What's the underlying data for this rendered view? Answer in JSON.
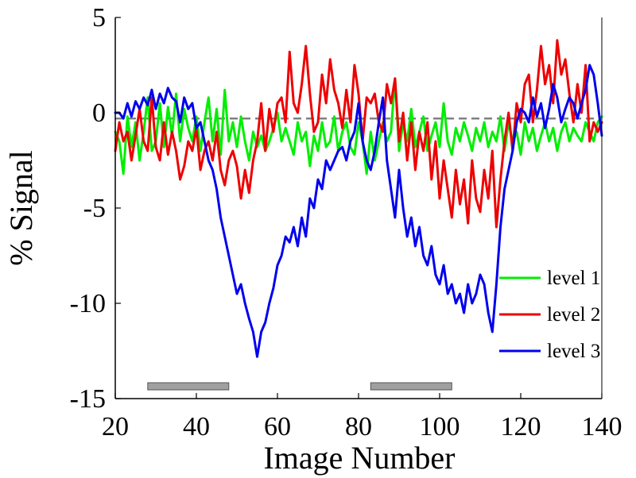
{
  "chart_data": {
    "type": "line",
    "title": "",
    "xlabel": "Image Number",
    "ylabel": "% Signal",
    "xlim": [
      20,
      140
    ],
    "ylim": [
      -15,
      5
    ],
    "xticks": [
      20,
      40,
      60,
      80,
      100,
      120,
      140
    ],
    "yticks": [
      -15,
      -10,
      -5,
      0,
      5
    ],
    "grid": false,
    "legend_position": "bottom-right",
    "reference_line": {
      "y": -0.3,
      "color": "#808080",
      "style": "dashed"
    },
    "stimulus_blocks": [
      {
        "start": 28,
        "end": 48,
        "color": "#a0a0a0"
      },
      {
        "start": 83,
        "end": 103,
        "color": "#a0a0a0"
      }
    ],
    "series": [
      {
        "name": "level 1",
        "color": "#00ee00",
        "x": [
          20,
          21,
          22,
          23,
          24,
          25,
          26,
          27,
          28,
          29,
          30,
          31,
          32,
          33,
          34,
          35,
          36,
          37,
          38,
          39,
          40,
          41,
          42,
          43,
          44,
          45,
          46,
          47,
          48,
          49,
          50,
          51,
          52,
          53,
          54,
          55,
          56,
          57,
          58,
          59,
          60,
          61,
          62,
          63,
          64,
          65,
          66,
          67,
          68,
          69,
          70,
          71,
          72,
          73,
          74,
          75,
          76,
          77,
          78,
          79,
          80,
          81,
          82,
          83,
          84,
          85,
          86,
          87,
          88,
          89,
          90,
          91,
          92,
          93,
          94,
          95,
          96,
          97,
          98,
          99,
          100,
          101,
          102,
          103,
          104,
          105,
          106,
          107,
          108,
          109,
          110,
          111,
          112,
          113,
          114,
          115,
          116,
          117,
          118,
          119,
          120,
          121,
          122,
          123,
          124,
          125,
          126,
          127,
          128,
          129,
          130,
          131,
          132,
          133,
          134,
          135,
          136,
          137,
          138,
          139,
          140
        ],
        "y": [
          -1.0,
          -1.5,
          -3.2,
          -0.2,
          -1.8,
          -0.5,
          -2.5,
          -1.0,
          0.8,
          -2.0,
          -1.5,
          0.5,
          -1.8,
          0.3,
          -1.2,
          1.0,
          -1.5,
          0.2,
          -0.8,
          -1.5,
          -0.2,
          -2.0,
          -0.5,
          0.8,
          -1.5,
          0.2,
          -2.2,
          1.2,
          -1.5,
          -0.5,
          -1.8,
          -0.2,
          -1.5,
          -2.5,
          -1.0,
          -1.8,
          -1.2,
          -2.0,
          -1.5,
          -0.8,
          0.0,
          -1.5,
          -0.8,
          -1.5,
          -2.2,
          -0.5,
          -1.5,
          -1.0,
          -2.8,
          -1.2,
          -2.0,
          -0.5,
          -1.8,
          -1.5,
          -0.2,
          -2.0,
          -1.0,
          -0.5,
          -1.8,
          -2.2,
          -0.5,
          -1.5,
          -3.2,
          -1.0,
          -2.5,
          -1.5,
          -0.5,
          -1.5,
          -1.0,
          1.8,
          -2.0,
          -0.5,
          -1.5,
          0.2,
          -1.8,
          -1.0,
          -0.2,
          -2.0,
          -1.2,
          -0.5,
          -1.8,
          0.5,
          -1.5,
          -2.2,
          -0.8,
          -1.5,
          -0.5,
          -1.2,
          -2.0,
          -0.8,
          -1.5,
          -0.5,
          -1.8,
          -1.0,
          -1.5,
          -0.2,
          -2.0,
          -0.5,
          -1.5,
          -1.0,
          -2.2,
          -0.5,
          -1.5,
          -0.8,
          -2.0,
          -1.2,
          -0.5,
          -1.5,
          -0.8,
          -2.0,
          -1.0,
          -0.5,
          -1.5,
          -0.8,
          -1.2,
          -1.5,
          -0.5,
          -1.0,
          -1.5,
          -0.5,
          -0.2
        ]
      },
      {
        "name": "level 2",
        "color": "#ee0000",
        "x": [
          20,
          21,
          22,
          23,
          24,
          25,
          26,
          27,
          28,
          29,
          30,
          31,
          32,
          33,
          34,
          35,
          36,
          37,
          38,
          39,
          40,
          41,
          42,
          43,
          44,
          45,
          46,
          47,
          48,
          49,
          50,
          51,
          52,
          53,
          54,
          55,
          56,
          57,
          58,
          59,
          60,
          61,
          62,
          63,
          64,
          65,
          66,
          67,
          68,
          69,
          70,
          71,
          72,
          73,
          74,
          75,
          76,
          77,
          78,
          79,
          80,
          81,
          82,
          83,
          84,
          85,
          86,
          87,
          88,
          89,
          90,
          91,
          92,
          93,
          94,
          95,
          96,
          97,
          98,
          99,
          100,
          101,
          102,
          103,
          104,
          105,
          106,
          107,
          108,
          109,
          110,
          111,
          112,
          113,
          114,
          115,
          116,
          117,
          118,
          119,
          120,
          121,
          122,
          123,
          124,
          125,
          126,
          127,
          128,
          129,
          130,
          131,
          132,
          133,
          134,
          135,
          136,
          137,
          138,
          139,
          140
        ],
        "y": [
          -2.0,
          -0.5,
          -1.5,
          -1.0,
          -2.5,
          -1.2,
          0.2,
          -1.5,
          -2.0,
          0.8,
          -1.8,
          -2.5,
          -0.5,
          -2.2,
          -1.0,
          -2.0,
          -3.5,
          -2.8,
          -1.5,
          -2.0,
          -0.8,
          -3.0,
          -2.0,
          -1.5,
          -2.5,
          -1.0,
          -3.0,
          -3.8,
          -2.5,
          -2.0,
          -2.8,
          -4.5,
          -3.0,
          -4.2,
          -2.5,
          -1.5,
          0.5,
          -2.0,
          0.2,
          -1.0,
          0.5,
          0.8,
          -0.5,
          3.2,
          0.5,
          0.0,
          1.5,
          3.5,
          1.0,
          -1.0,
          -0.5,
          2.0,
          0.5,
          2.8,
          1.2,
          0.5,
          -0.8,
          1.2,
          -0.5,
          2.5,
          1.0,
          -1.5,
          0.8,
          0.5,
          1.0,
          -0.5,
          -1.0,
          1.5,
          0.5,
          1.8,
          -1.5,
          0.0,
          -2.5,
          -0.5,
          -3.0,
          -1.0,
          -2.0,
          -0.5,
          -3.5,
          -1.5,
          -4.5,
          -2.5,
          -4.0,
          -5.5,
          -3.0,
          -4.8,
          -3.5,
          -5.8,
          -2.5,
          -4.5,
          -5.2,
          -3.0,
          -4.5,
          -2.0,
          -6.0,
          -3.5,
          -1.5,
          0.0,
          -2.0,
          0.5,
          -0.5,
          1.5,
          2.0,
          -0.5,
          1.2,
          3.5,
          1.5,
          2.5,
          0.5,
          3.8,
          2.0,
          2.8,
          1.0,
          -0.5,
          1.5,
          0.0,
          2.5,
          -1.5,
          -0.5,
          -1.0,
          -0.5
        ]
      },
      {
        "name": "level 3",
        "color": "#0000ee",
        "x": [
          20,
          21,
          22,
          23,
          24,
          25,
          26,
          27,
          28,
          29,
          30,
          31,
          32,
          33,
          34,
          35,
          36,
          37,
          38,
          39,
          40,
          41,
          42,
          43,
          44,
          45,
          46,
          47,
          48,
          49,
          50,
          51,
          52,
          53,
          54,
          55,
          56,
          57,
          58,
          59,
          60,
          61,
          62,
          63,
          64,
          65,
          66,
          67,
          68,
          69,
          70,
          71,
          72,
          73,
          74,
          75,
          76,
          77,
          78,
          79,
          80,
          81,
          82,
          83,
          84,
          85,
          86,
          87,
          88,
          89,
          90,
          91,
          92,
          93,
          94,
          95,
          96,
          97,
          98,
          99,
          100,
          101,
          102,
          103,
          104,
          105,
          106,
          107,
          108,
          109,
          110,
          111,
          112,
          113,
          114,
          115,
          116,
          117,
          118,
          119,
          120,
          121,
          122,
          123,
          124,
          125,
          126,
          127,
          128,
          129,
          130,
          131,
          132,
          133,
          134,
          135,
          136,
          137,
          138,
          139,
          140
        ],
        "y": [
          0.0,
          0.0,
          -0.3,
          0.5,
          -0.2,
          0.6,
          0.2,
          0.8,
          0.4,
          1.2,
          0.2,
          1.0,
          0.5,
          1.3,
          0.8,
          0.6,
          -0.5,
          0.8,
          0.2,
          0.5,
          -0.8,
          -0.5,
          -1.5,
          -2.5,
          -3.0,
          -4.0,
          -5.5,
          -6.5,
          -7.5,
          -8.5,
          -9.5,
          -9.0,
          -10.0,
          -10.8,
          -11.5,
          -12.8,
          -11.5,
          -11.0,
          -10.0,
          -9.2,
          -8.0,
          -7.5,
          -6.5,
          -6.8,
          -6.0,
          -7.0,
          -5.5,
          -6.5,
          -4.5,
          -5.0,
          -3.5,
          -4.0,
          -2.5,
          -3.0,
          -2.5,
          -2.0,
          -1.8,
          -2.5,
          -1.5,
          -1.0,
          0.5,
          -1.5,
          -2.5,
          -3.0,
          -2.0,
          -0.5,
          0.8,
          -2.5,
          -4.0,
          -5.5,
          -3.0,
          -5.0,
          -6.5,
          -5.5,
          -7.0,
          -6.0,
          -7.5,
          -8.0,
          -7.0,
          -8.5,
          -9.0,
          -8.0,
          -9.5,
          -9.0,
          -10.0,
          -9.5,
          -10.5,
          -9.0,
          -10.0,
          -9.5,
          -8.5,
          -9.0,
          -10.5,
          -11.5,
          -9.0,
          -6.0,
          -4.0,
          -3.0,
          -2.0,
          -0.5,
          0.2,
          0.0,
          -0.5,
          0.8,
          -0.2,
          0.5,
          -0.8,
          0.2,
          1.5,
          0.8,
          -0.5,
          0.2,
          0.8,
          0.5,
          -0.3,
          0.5,
          1.2,
          2.5,
          2.0,
          0.5,
          -1.2
        ]
      }
    ]
  }
}
